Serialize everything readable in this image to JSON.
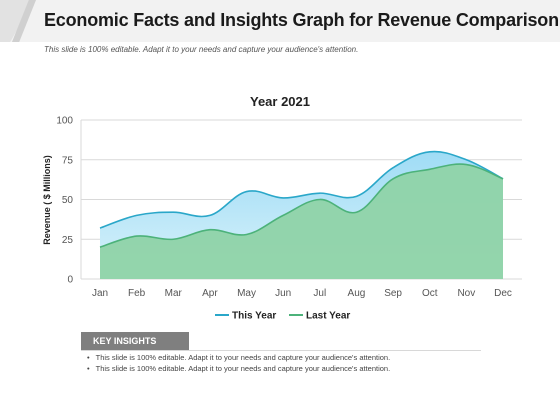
{
  "page": {
    "title": "Economic Facts and Insights Graph for Revenue Comparison",
    "subtitle": "This slide is 100% editable. Adapt it to your needs and capture your audience's attention."
  },
  "insights": {
    "label": "KEY INSIGHTS",
    "items": [
      "This slide is 100% editable. Adapt it to your needs and capture your audience's attention.",
      "This slide is 100% editable. Adapt it to your needs and capture your audience's attention."
    ]
  },
  "chart_data": {
    "type": "area",
    "title": "Year 2021",
    "xlabel": "",
    "ylabel": "Revenue ( $ Millions)",
    "categories": [
      "Jan",
      "Feb",
      "Mar",
      "Apr",
      "May",
      "Jun",
      "Jul",
      "Aug",
      "Sep",
      "Oct",
      "Nov",
      "Dec"
    ],
    "ylim": [
      0,
      100
    ],
    "yticks": [
      0,
      25,
      50,
      75,
      100
    ],
    "grid": true,
    "legend_position": "bottom",
    "series": [
      {
        "name": "This Year",
        "values": [
          32,
          40,
          42,
          40,
          55,
          51,
          54,
          52,
          70,
          80,
          75,
          63
        ],
        "line_color": "#2aa7c9",
        "fill_top": "#9fdcf5",
        "fill_bottom": "#d9f2fb"
      },
      {
        "name": "Last Year",
        "values": [
          20,
          27,
          25,
          31,
          28,
          40,
          50,
          42,
          63,
          69,
          72,
          63
        ],
        "line_color": "#4cb27a",
        "fill_top": "#8fd3a8",
        "fill_bottom": "#8fd3a8"
      }
    ]
  }
}
